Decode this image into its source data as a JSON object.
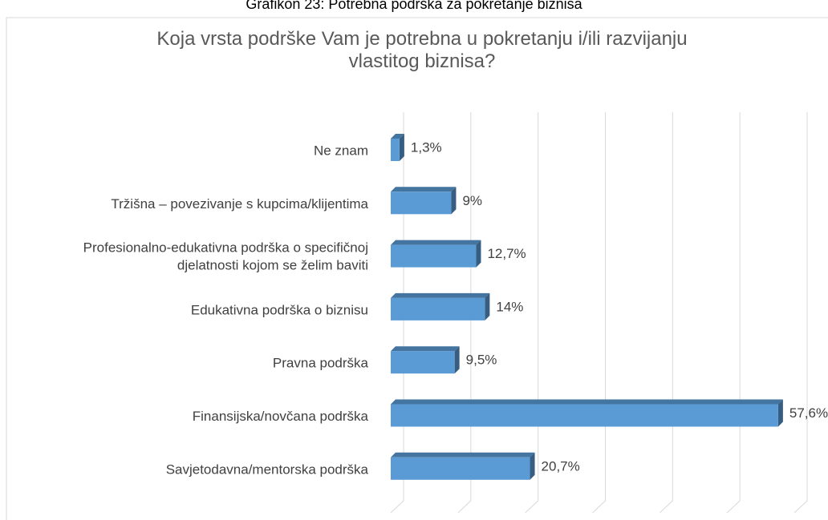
{
  "chart_data": {
    "type": "bar3d-horizontal",
    "caption": "Grafikon 23: Potrebna podrška za pokretanje biznisa",
    "title": "Koja vrsta podrške Vam je potrebna u pokretanju i/ili razvijanju\nvlastitog biznisa?",
    "categories": [
      "Ne znam",
      "Tržišna – povezivanje s kupcima/klijentima",
      "Profesionalno-edukativna podrška o specifičnoj\ndjelatnosti kojom se želim baviti",
      "Edukativna podrška o biznisu",
      "Pravna podrška",
      "Finansijska/novčana podrška",
      "Savjetodavna/mentorska podrška"
    ],
    "values": [
      1.3,
      9,
      12.7,
      14,
      9.5,
      57.6,
      20.7
    ],
    "value_labels": [
      "1,3%",
      "9%",
      "12,7%",
      "14%",
      "9,5%",
      "57,6%",
      "20,7%"
    ],
    "color": "#5b9bd5",
    "xlim": [
      0,
      60
    ],
    "xticks": [
      0,
      10,
      20,
      30,
      40,
      50,
      60
    ],
    "grid": true
  }
}
